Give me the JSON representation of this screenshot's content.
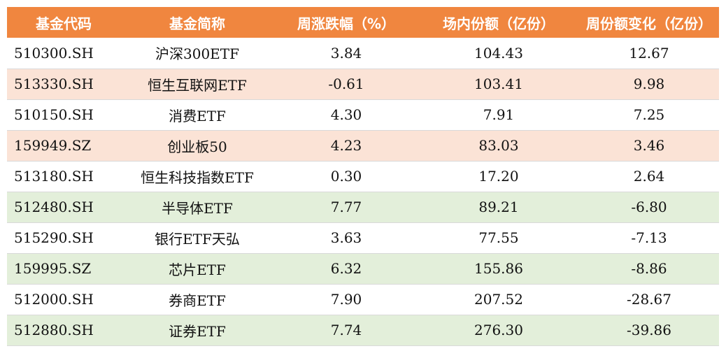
{
  "colors": {
    "header_bg": "#f0863f",
    "header_text": "#ffffff",
    "row_pink": "#fbe3d6",
    "row_green": "#e3efda",
    "row_white": "#ffffff"
  },
  "table": {
    "headers": [
      "基金代码",
      "基金简称",
      "周涨跌幅（%）",
      "场内份额（亿份）",
      "周份额变化（亿份）"
    ],
    "rows": [
      {
        "code": "510300.SH",
        "name": "沪深300ETF",
        "weekly_change_pct": "3.84",
        "shares": "104.43",
        "share_change": "12.67",
        "highlight": "white"
      },
      {
        "code": "513330.SH",
        "name": "恒生互联网ETF",
        "weekly_change_pct": "-0.61",
        "shares": "103.41",
        "share_change": "9.98",
        "highlight": "pink"
      },
      {
        "code": "510150.SH",
        "name": "消费ETF",
        "weekly_change_pct": "4.30",
        "shares": "7.91",
        "share_change": "7.25",
        "highlight": "white"
      },
      {
        "code": "159949.SZ",
        "name": "创业板50",
        "weekly_change_pct": "4.23",
        "shares": "83.03",
        "share_change": "3.46",
        "highlight": "pink"
      },
      {
        "code": "513180.SH",
        "name": "恒生科技指数ETF",
        "weekly_change_pct": "0.30",
        "shares": "17.20",
        "share_change": "2.64",
        "highlight": "white"
      },
      {
        "code": "512480.SH",
        "name": "半导体ETF",
        "weekly_change_pct": "7.77",
        "shares": "89.21",
        "share_change": "-6.80",
        "highlight": "green"
      },
      {
        "code": "515290.SH",
        "name": "银行ETF天弘",
        "weekly_change_pct": "3.63",
        "shares": "77.55",
        "share_change": "-7.13",
        "highlight": "white"
      },
      {
        "code": "159995.SZ",
        "name": "芯片ETF",
        "weekly_change_pct": "6.32",
        "shares": "155.86",
        "share_change": "-8.86",
        "highlight": "green"
      },
      {
        "code": "512000.SH",
        "name": "券商ETF",
        "weekly_change_pct": "7.90",
        "shares": "207.52",
        "share_change": "-28.67",
        "highlight": "white"
      },
      {
        "code": "512880.SH",
        "name": "证券ETF",
        "weekly_change_pct": "7.74",
        "shares": "276.30",
        "share_change": "-39.86",
        "highlight": "green"
      }
    ]
  }
}
